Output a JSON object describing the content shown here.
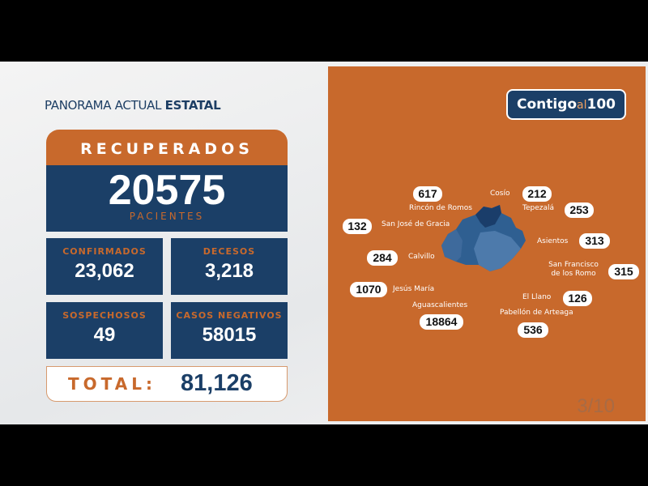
{
  "header": {
    "title_regular": "PANORAMA ACTUAL",
    "title_bold": "ESTATAL"
  },
  "recovered": {
    "label": "RECUPERADOS",
    "value": "20575",
    "unit": "PACIENTES"
  },
  "stats": [
    {
      "label": "CONFIRMADOS",
      "value": "23,062"
    },
    {
      "label": "DECESOS",
      "value": "3,218"
    },
    {
      "label": "SOSPECHOSOS",
      "value": "49"
    },
    {
      "label": "CASOS NEGATIVOS",
      "value": "58015"
    }
  ],
  "total": {
    "label": "TOTAL:",
    "value": "81,126"
  },
  "logo": {
    "text_main": "Contigo",
    "text_small": "al",
    "text_num": "100"
  },
  "municipalities": [
    {
      "name": "Rincón de Romos",
      "value": "617"
    },
    {
      "name": "Cosío",
      "value": "212"
    },
    {
      "name": "Tepezalá",
      "value": "253"
    },
    {
      "name": "San José de Gracia",
      "value": "132"
    },
    {
      "name": "Asientos",
      "value": "313"
    },
    {
      "name": "Calvillo",
      "value": "284"
    },
    {
      "name": "San Francisco de los Romo",
      "value": "315"
    },
    {
      "name": "Jesús María",
      "value": "1070"
    },
    {
      "name": "El Llano",
      "value": "126"
    },
    {
      "name": "Aguascalientes",
      "value": "18864"
    },
    {
      "name": "Pabellón de Arteaga",
      "value": "536"
    }
  ],
  "page_indicator": "3/10",
  "colors": {
    "orange": "#c8692c",
    "navy": "#1b3f67"
  }
}
